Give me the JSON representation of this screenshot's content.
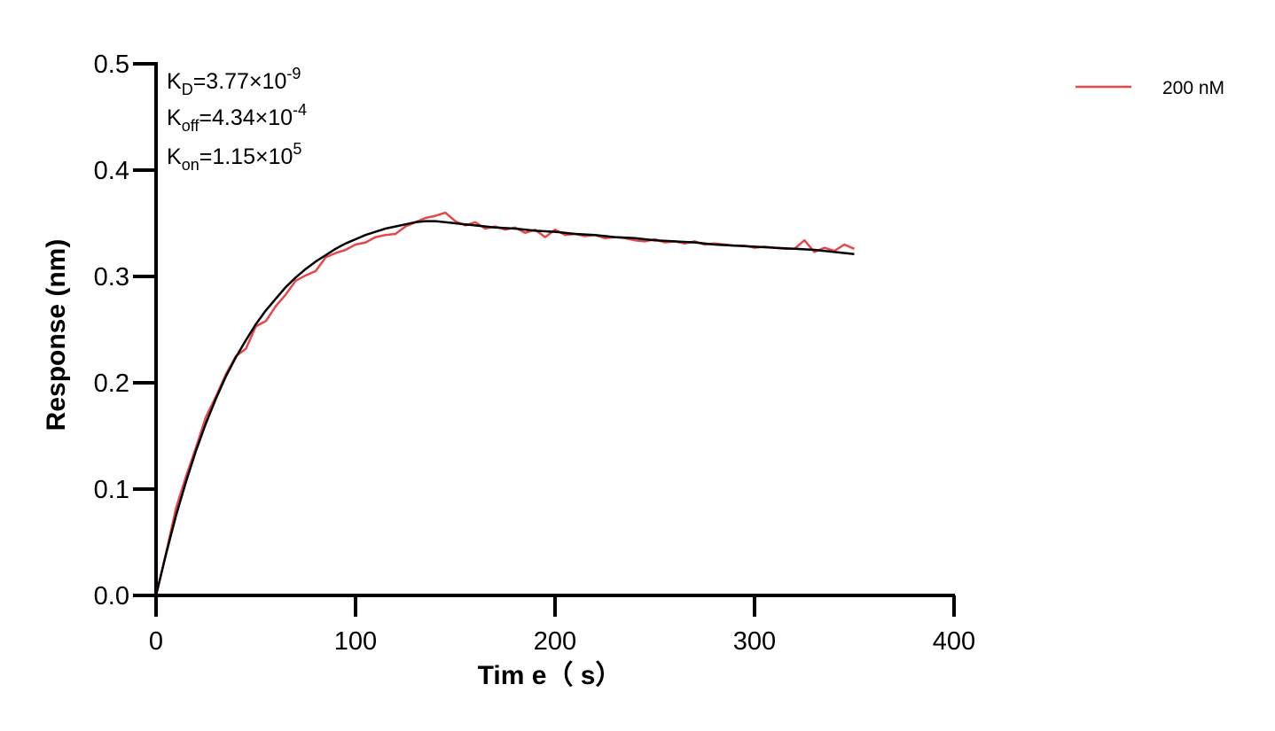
{
  "chart_data": {
    "type": "line",
    "title": "",
    "xlabel": "Tim e（ s）",
    "ylabel": "Response (nm)",
    "xlim": [
      0,
      400
    ],
    "ylim": [
      0,
      0.5
    ],
    "xticks": [
      0,
      100,
      200,
      300,
      400
    ],
    "yticks": [
      0.0,
      0.1,
      0.2,
      0.3,
      0.4,
      0.5
    ],
    "xtick_labels": [
      "0",
      "100",
      "200",
      "300",
      "400"
    ],
    "ytick_labels": [
      "0.0",
      "0.1",
      "0.2",
      "0.3",
      "0.4",
      "0.5"
    ],
    "grid": false,
    "legend": {
      "position": "top-right",
      "entries": [
        "200 nM"
      ]
    },
    "annotations": [
      {
        "main": "K",
        "sub": "D",
        "rest": "=3.77×10",
        "sup": "-9"
      },
      {
        "main": "K",
        "sub": "off",
        "rest": "=4.34×10",
        "sup": "-4"
      },
      {
        "main": "K",
        "sub": "on",
        "rest": "=1.15×10",
        "sup": "5"
      }
    ],
    "series": [
      {
        "name": "200 nM",
        "color": "#e8474a",
        "x": [
          0,
          5,
          10,
          15,
          20,
          25,
          30,
          35,
          40,
          45,
          50,
          55,
          60,
          65,
          70,
          75,
          80,
          85,
          90,
          95,
          100,
          105,
          110,
          115,
          120,
          125,
          130,
          135,
          140,
          145,
          150,
          155,
          160,
          165,
          170,
          175,
          180,
          185,
          190,
          195,
          200,
          205,
          210,
          215,
          220,
          225,
          230,
          235,
          240,
          245,
          250,
          255,
          260,
          265,
          270,
          275,
          280,
          285,
          290,
          295,
          300,
          305,
          310,
          315,
          320,
          325,
          330,
          335,
          340,
          345,
          350
        ],
        "y": [
          0.0,
          0.04,
          0.082,
          0.112,
          0.139,
          0.168,
          0.187,
          0.208,
          0.225,
          0.232,
          0.253,
          0.258,
          0.272,
          0.283,
          0.296,
          0.301,
          0.305,
          0.318,
          0.322,
          0.325,
          0.33,
          0.332,
          0.337,
          0.339,
          0.34,
          0.347,
          0.351,
          0.355,
          0.357,
          0.36,
          0.352,
          0.348,
          0.351,
          0.345,
          0.347,
          0.344,
          0.346,
          0.341,
          0.344,
          0.337,
          0.344,
          0.339,
          0.34,
          0.338,
          0.339,
          0.336,
          0.337,
          0.336,
          0.334,
          0.333,
          0.335,
          0.332,
          0.333,
          0.331,
          0.333,
          0.33,
          0.331,
          0.33,
          0.329,
          0.329,
          0.327,
          0.328,
          0.327,
          0.326,
          0.326,
          0.334,
          0.323,
          0.327,
          0.324,
          0.33,
          0.326
        ]
      },
      {
        "name": "",
        "color": "#000000",
        "x": [
          0,
          5,
          10,
          15,
          20,
          25,
          30,
          35,
          40,
          45,
          50,
          55,
          60,
          65,
          70,
          75,
          80,
          85,
          90,
          95,
          100,
          105,
          110,
          115,
          120,
          125,
          130,
          135,
          140,
          145,
          150,
          155,
          160,
          170,
          180,
          190,
          200,
          210,
          220,
          230,
          240,
          250,
          260,
          270,
          280,
          290,
          300,
          310,
          320,
          330,
          340,
          350
        ],
        "y": [
          0.0,
          0.039,
          0.075,
          0.107,
          0.136,
          0.162,
          0.185,
          0.206,
          0.224,
          0.24,
          0.255,
          0.268,
          0.279,
          0.29,
          0.299,
          0.307,
          0.314,
          0.32,
          0.326,
          0.331,
          0.335,
          0.339,
          0.342,
          0.345,
          0.347,
          0.349,
          0.351,
          0.352,
          0.352,
          0.351,
          0.35,
          0.349,
          0.348,
          0.346,
          0.345,
          0.343,
          0.342,
          0.34,
          0.339,
          0.337,
          0.336,
          0.334,
          0.333,
          0.332,
          0.33,
          0.329,
          0.328,
          0.327,
          0.326,
          0.325,
          0.323,
          0.321
        ]
      }
    ]
  }
}
